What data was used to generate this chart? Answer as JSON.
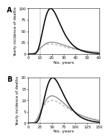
{
  "panel_A": {
    "label": "A",
    "xmax": 60,
    "ymax": 100,
    "yticks": [
      0,
      25,
      50,
      75,
      100
    ],
    "xticks": [
      0,
      10,
      20,
      30,
      40,
      50,
      60
    ],
    "vline_x": 10,
    "black_peak_x": 22,
    "black_peak_y": 100,
    "black_sigma": 0.38,
    "gray_solid_peak_x": 27,
    "gray_solid_peak_y": 26,
    "gray_solid_sigma": 0.55,
    "gray_dashed_peak_x": 27,
    "gray_dashed_peak_y": 22,
    "gray_dashed_sigma": 0.6
  },
  "panel_B": {
    "label": "B",
    "xmax": 150,
    "ymax": 20,
    "yticks": [
      0,
      5,
      10,
      15,
      20
    ],
    "xticks": [
      0,
      25,
      50,
      75,
      100,
      125,
      150
    ],
    "vline_x": 25,
    "black_peak_x": 60,
    "black_peak_y": 20,
    "black_sigma": 0.38,
    "gray_solid_peak_x": 65,
    "gray_solid_peak_y": 12,
    "gray_solid_sigma": 0.5,
    "gray_dashed_peak_x": 68,
    "gray_dashed_peak_y": 10,
    "gray_dashed_sigma": 0.55
  },
  "ylabel": "Yearly incidence of deaths",
  "xlabel": "No. years",
  "black_color": "#111111",
  "gray_solid_color": "#888888",
  "gray_dashed_color": "#aaaaaa",
  "background_color": "#ffffff",
  "lw_black": 1.3,
  "lw_gray_solid": 1.0,
  "lw_gray_dashed": 0.9,
  "tick_labelsize": 4,
  "xlabel_fontsize": 4.5,
  "ylabel_fontsize": 4,
  "label_fontsize": 7
}
